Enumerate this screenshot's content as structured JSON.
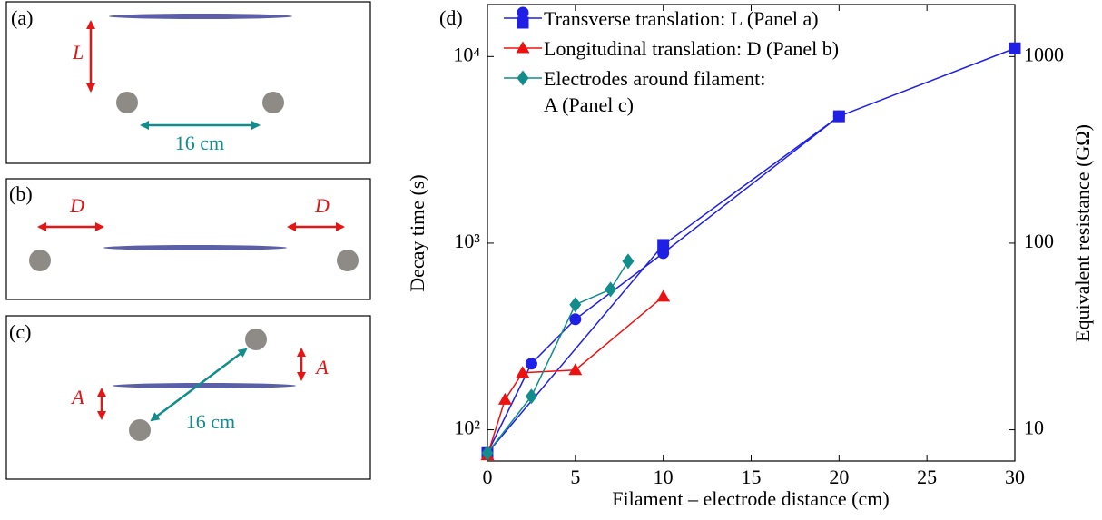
{
  "panels": [
    {
      "label": "(a)",
      "length_label": "L",
      "distance_label": "16 cm"
    },
    {
      "label": "(b)",
      "left_label": "D",
      "right_label": "D"
    },
    {
      "label": "(c)",
      "right_label": "A",
      "left_label": "A",
      "distance_label": "16 cm"
    }
  ],
  "chart_data": {
    "type": "line",
    "panel_label": "(d)",
    "x_label": "Filament – electrode distance (cm)",
    "y_label": "Decay time (s)",
    "y2_label": "Equivalent resistance (GΩ)",
    "xlim": [
      0,
      30
    ],
    "xticks": [
      0,
      5,
      10,
      15,
      20,
      25,
      30
    ],
    "ylim": [
      68,
      19000
    ],
    "y_log": true,
    "yticks": [
      {
        "value": 100,
        "label": "10²"
      },
      {
        "value": 1000,
        "label": "10³"
      },
      {
        "value": 10000,
        "label": "10⁴"
      }
    ],
    "y2lim": [
      6.8,
      1900
    ],
    "y2ticks": [
      10,
      100,
      1000
    ],
    "series": [
      {
        "name": "Transverse translation: L (Panel a)",
        "color": "#1f1fe6",
        "marker": "circle",
        "x": [
          0,
          2.5,
          5,
          10,
          20
        ],
        "values": [
          75,
          226,
          391,
          885,
          4786
        ]
      },
      {
        "color": "#1f1fe6",
        "marker": "square",
        "x": [
          0,
          10,
          20,
          30
        ],
        "values": [
          75,
          978,
          4786,
          11070
        ]
      },
      {
        "name": "Longitudinal translation: D (Panel b)",
        "color": "#ee1111",
        "marker": "triangle",
        "x": [
          0,
          1,
          2,
          5,
          10
        ],
        "values": [
          73,
          145,
          202,
          209,
          517
        ]
      },
      {
        "name": "Electrodes around filament: A (Panel c)",
        "color": "#138c8c",
        "marker": "diamond",
        "x": [
          0,
          2.5,
          5,
          7,
          8
        ],
        "values": [
          75,
          151,
          468,
          565,
          800
        ]
      }
    ]
  }
}
